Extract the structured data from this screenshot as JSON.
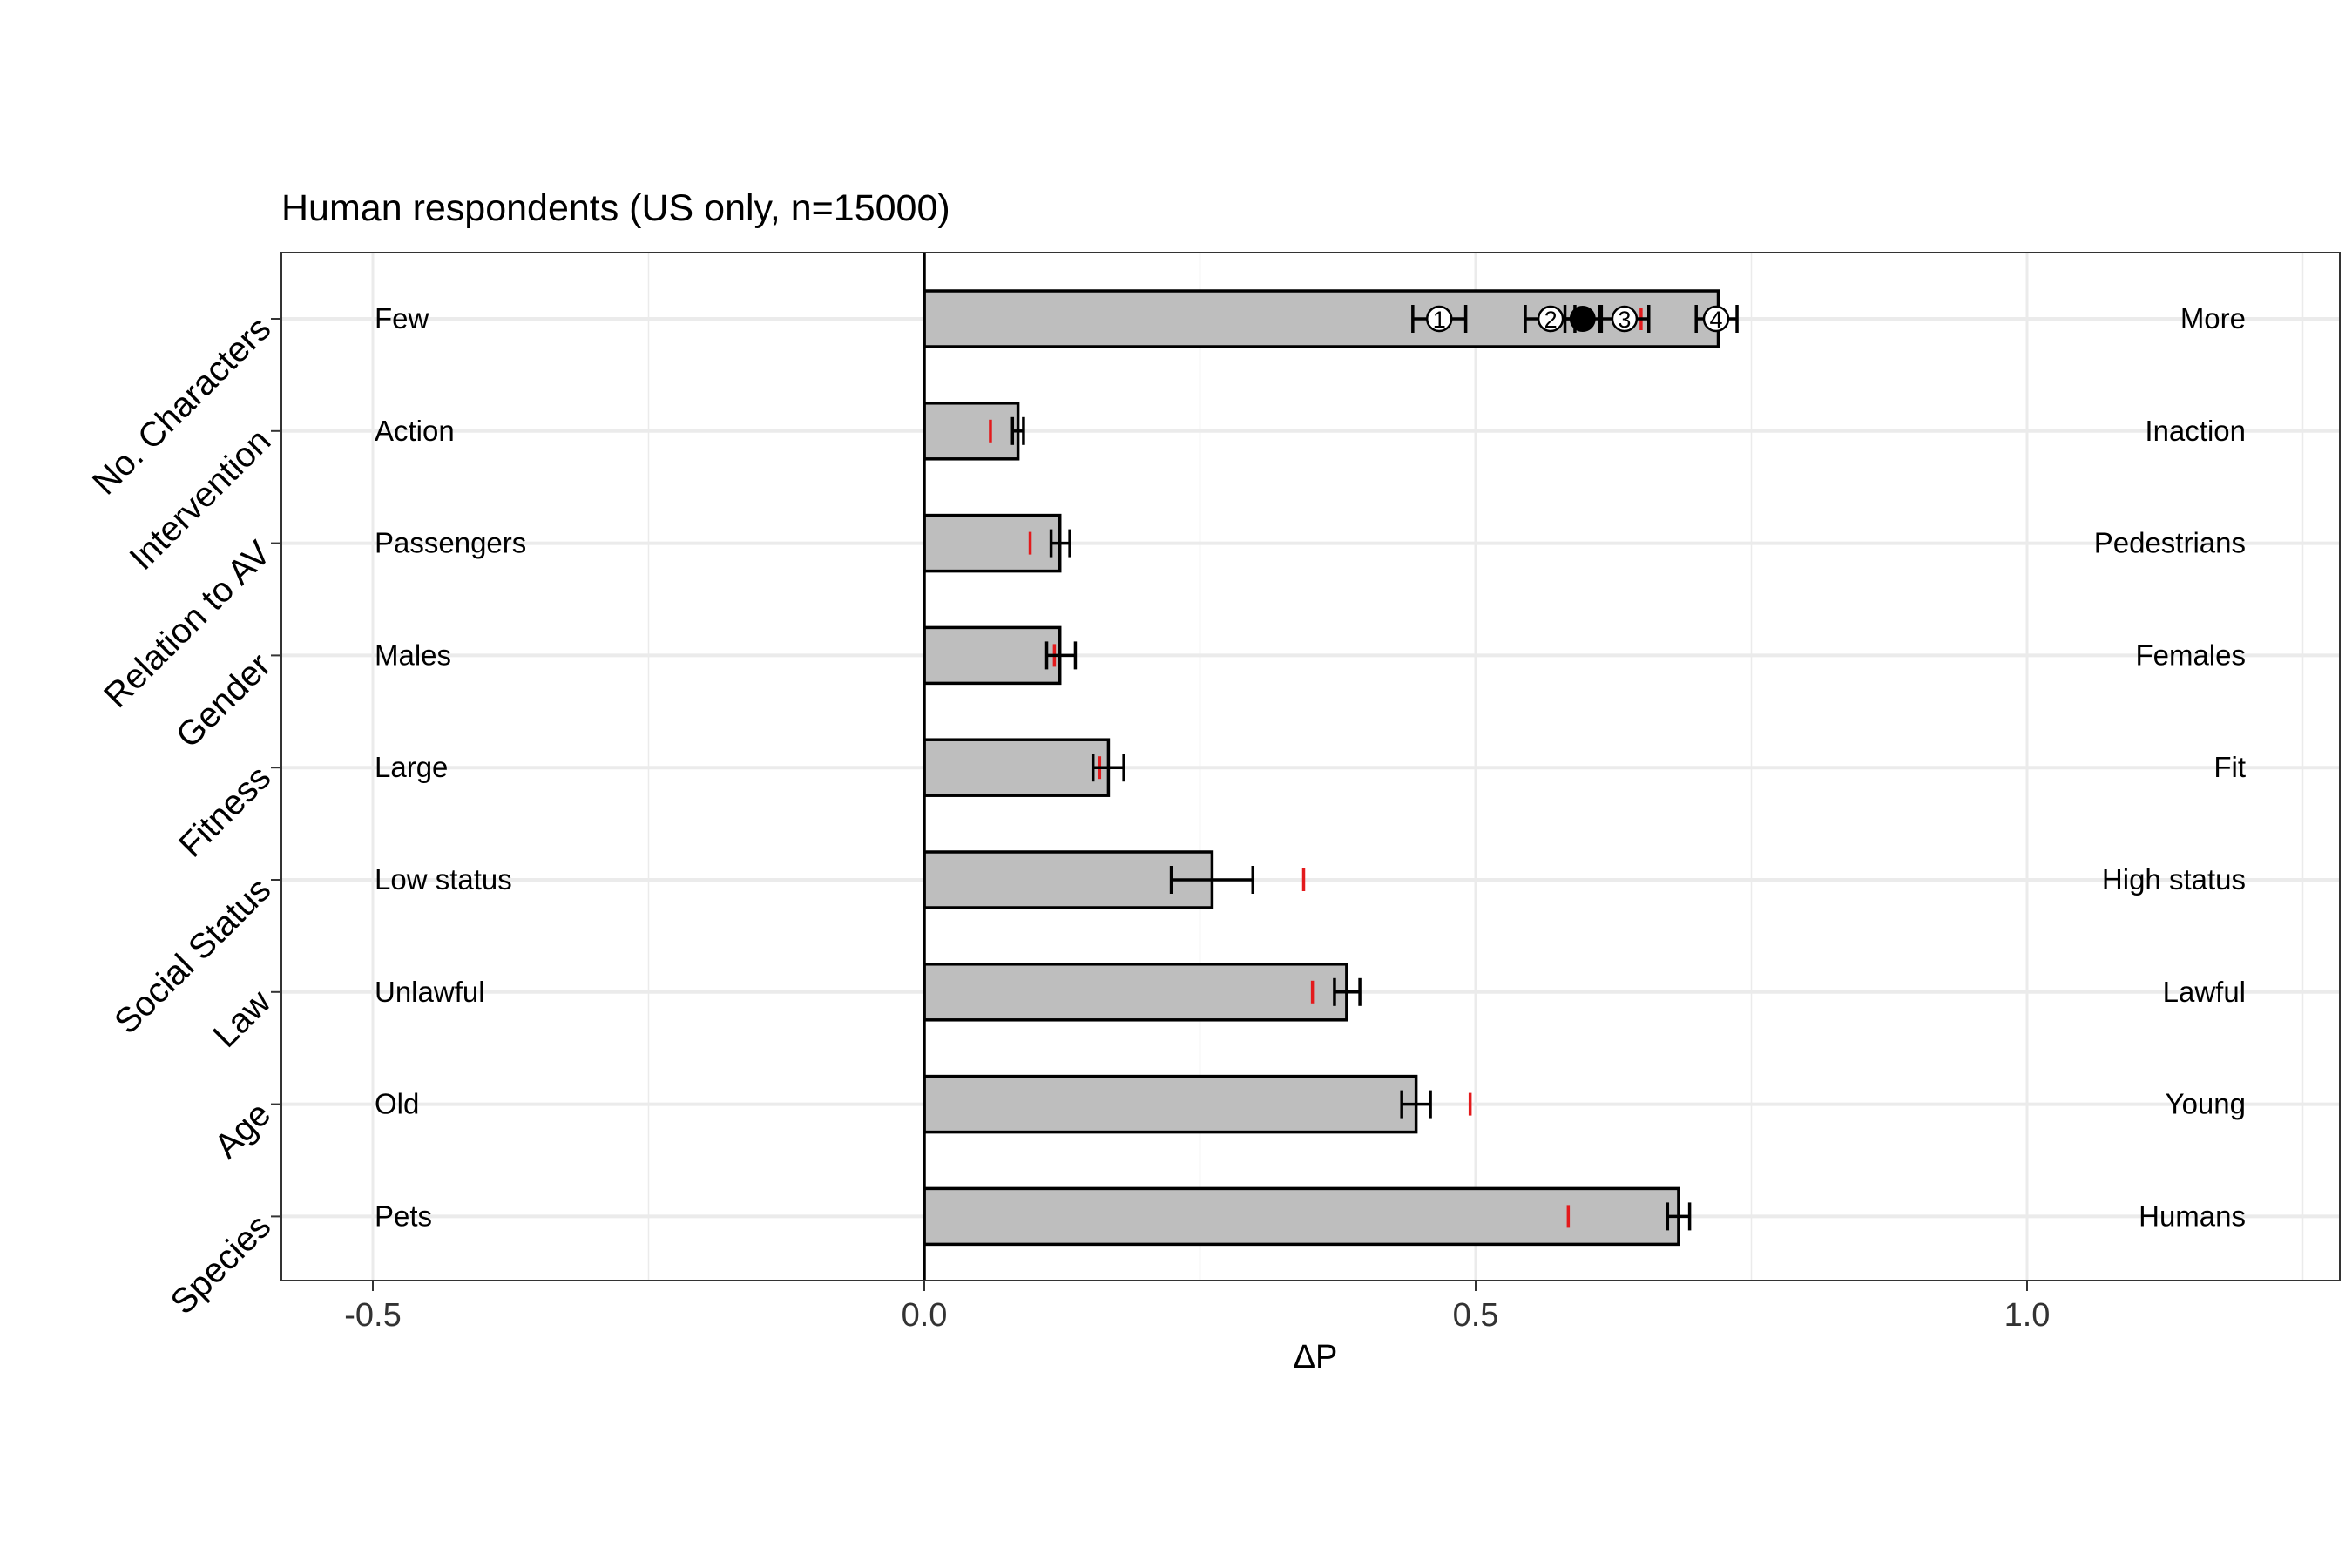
{
  "chart_data": {
    "type": "bar",
    "orientation": "horizontal",
    "title": "Human respondents (US only, n=15000)",
    "xlabel": "ΔP",
    "ylabel": "",
    "xlim": [
      -0.5,
      1.25
    ],
    "xticks": [
      "-0.5",
      "0.0",
      "0.5",
      "1.0"
    ],
    "grid": true,
    "colors": {
      "bar_fill": "#bebebe",
      "bar_edge": "#000000",
      "reference_mark": "#e31a1c",
      "gridline": "#ebebeb"
    },
    "categories": [
      {
        "name": "No. Characters",
        "left": "Few",
        "right": "More",
        "value": 0.72,
        "err": [
          null,
          null
        ],
        "ref": 0.65
      },
      {
        "name": "Intervention",
        "left": "Action",
        "right": "Inaction",
        "value": 0.085,
        "err": [
          0.08,
          0.09
        ],
        "ref": 0.06
      },
      {
        "name": "Relation to AV",
        "left": "Passengers",
        "right": "Pedestrians",
        "value": 0.123,
        "err": [
          0.115,
          0.132
        ],
        "ref": 0.096
      },
      {
        "name": "Gender",
        "left": "Males",
        "right": "Females",
        "value": 0.123,
        "err": [
          0.111,
          0.137
        ],
        "ref": 0.118
      },
      {
        "name": "Fitness",
        "left": "Large",
        "right": "Fit",
        "value": 0.167,
        "err": [
          0.153,
          0.181
        ],
        "ref": 0.159
      },
      {
        "name": "Social Status",
        "left": "Low status",
        "right": "High status",
        "value": 0.261,
        "err": [
          0.224,
          0.298
        ],
        "ref": 0.344
      },
      {
        "name": "Law",
        "left": "Unlawful",
        "right": "Lawful",
        "value": 0.383,
        "err": [
          0.372,
          0.395
        ],
        "ref": 0.352
      },
      {
        "name": "Age",
        "left": "Old",
        "right": "Young",
        "value": 0.446,
        "err": [
          0.433,
          0.459
        ],
        "ref": 0.495
      },
      {
        "name": "Species",
        "left": "Pets",
        "right": "Humans",
        "value": 0.684,
        "err": [
          0.674,
          0.694
        ],
        "ref": 0.584
      }
    ],
    "character_markers": {
      "category": "No. Characters",
      "points": [
        {
          "label": "1",
          "value": 0.467,
          "err": [
            0.443,
            0.491
          ]
        },
        {
          "label": "2",
          "value": 0.568,
          "err": [
            0.545,
            0.59
          ]
        },
        {
          "label": "3",
          "value": 0.635,
          "err": [
            0.612,
            0.657
          ]
        },
        {
          "label": "4",
          "value": 0.718,
          "err": [
            0.7,
            0.737
          ]
        }
      ],
      "mean": {
        "value": 0.597,
        "err": [
          0.581,
          0.614
        ]
      }
    }
  }
}
